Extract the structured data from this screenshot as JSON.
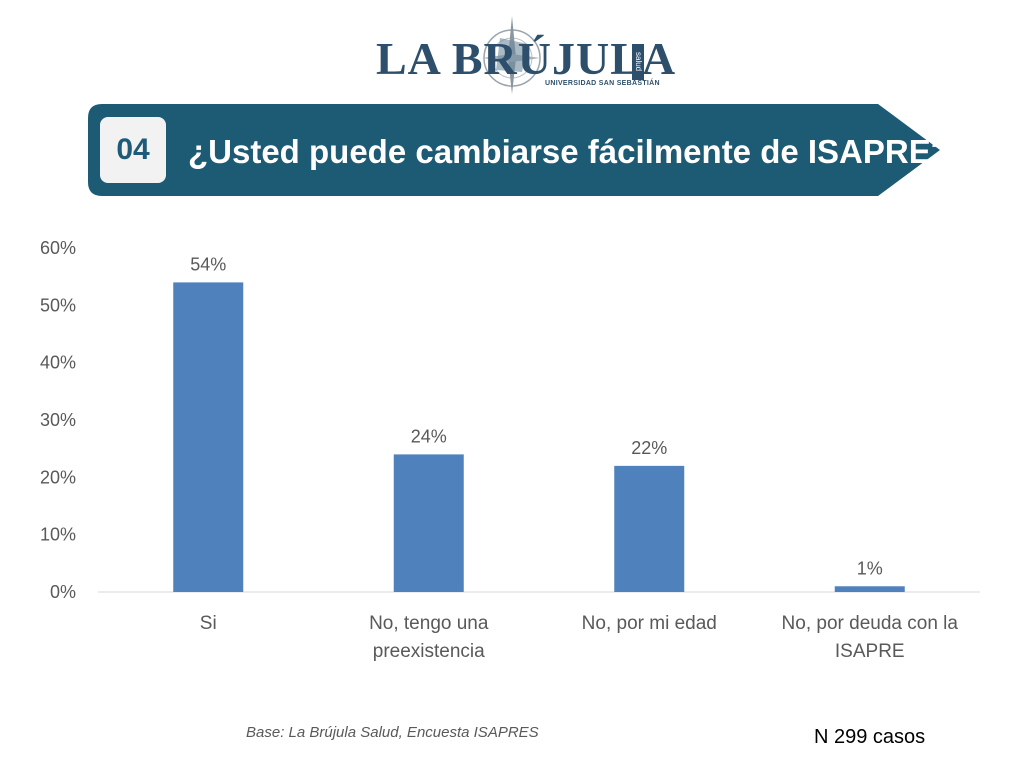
{
  "logo": {
    "name": "LA BRÚJULA",
    "side_text": "salud",
    "subtitle": "UNIVERSIDAD SAN SEBASTIÁN"
  },
  "banner": {
    "number": "04",
    "question": "¿Usted puede cambiarse fácilmente de ISAPRE?",
    "color": "#1d5a74"
  },
  "chart_data": {
    "type": "bar",
    "categories": [
      [
        "Si"
      ],
      [
        "No, tengo una",
        "preexistencia"
      ],
      [
        "No, por mi edad"
      ],
      [
        "No, por deuda con la",
        "ISAPRE"
      ]
    ],
    "values": [
      54,
      24,
      22,
      1
    ],
    "data_labels": [
      "54%",
      "24%",
      "22%",
      "1%"
    ],
    "y_ticks": [
      "0%",
      "10%",
      "20%",
      "30%",
      "40%",
      "50%",
      "60%"
    ],
    "ylim": [
      0,
      60
    ],
    "bar_color": "#4f81bd",
    "grid": false,
    "legend": "none"
  },
  "footer": {
    "source": "Base: La Brújula Salud, Encuesta ISAPRES",
    "n_cases": "N 299 casos"
  }
}
